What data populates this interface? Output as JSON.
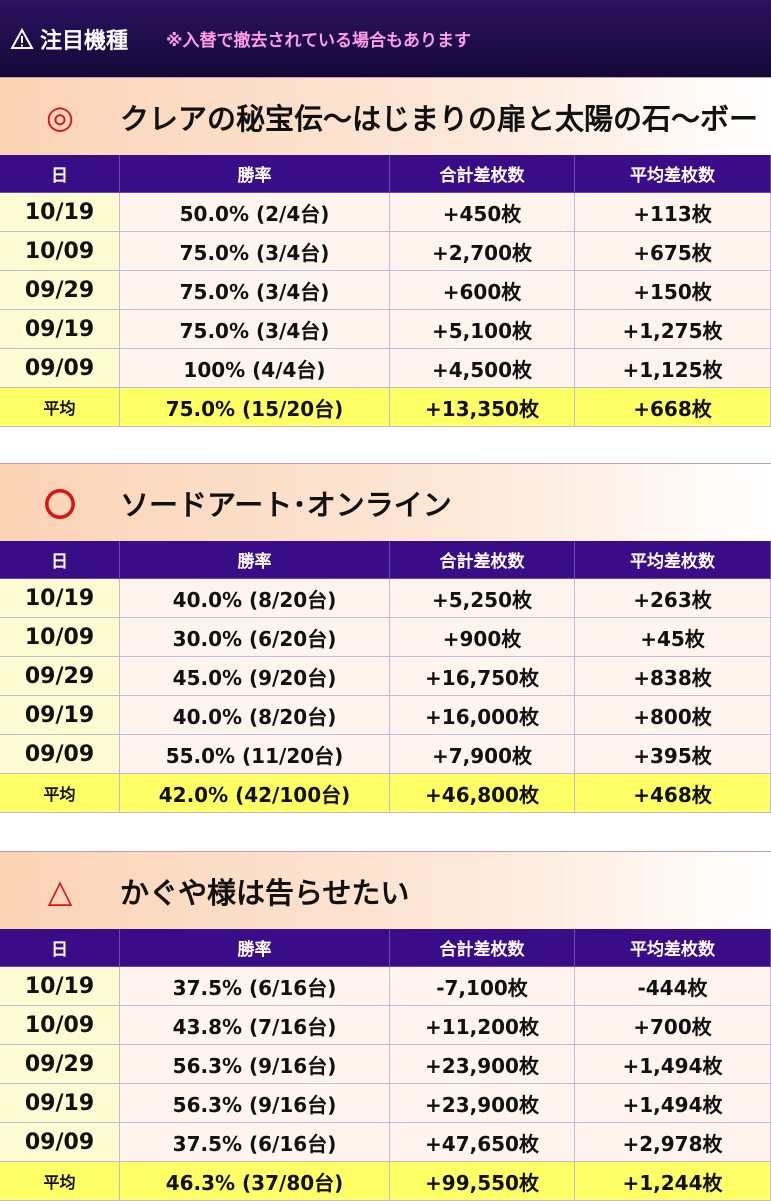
{
  "header": {
    "title": "注目機種",
    "notice": "※入替で撤去されている場合もあります"
  },
  "sections": [
    {
      "mark": "◎",
      "title": "クレアの秘宝伝～はじまりの扉と太陽の石～ボー",
      "columns": [
        "日",
        "勝率",
        "合計差枚数",
        "平均差枚数"
      ],
      "rows": [
        [
          "10/19",
          "50.0% (2/4台)",
          "+450枚",
          "+113枚"
        ],
        [
          "10/09",
          "75.0% (3/4台)",
          "+2,700枚",
          "+675枚"
        ],
        [
          "09/29",
          "75.0% (3/4台)",
          "+600枚",
          "+150枚"
        ],
        [
          "09/19",
          "75.0% (3/4台)",
          "+5,100枚",
          "+1,275枚"
        ],
        [
          "09/09",
          "100% (4/4台)",
          "+4,500枚",
          "+1,125枚"
        ]
      ],
      "average": [
        "平均",
        "75.0% (15/20台)",
        "+13,350枚",
        "+668枚"
      ]
    },
    {
      "mark": "〇",
      "title": "ソードアート･オンライン",
      "columns": [
        "日",
        "勝率",
        "合計差枚数",
        "平均差枚数"
      ],
      "rows": [
        [
          "10/19",
          "40.0% (8/20台)",
          "+5,250枚",
          "+263枚"
        ],
        [
          "10/09",
          "30.0% (6/20台)",
          "+900枚",
          "+45枚"
        ],
        [
          "09/29",
          "45.0% (9/20台)",
          "+16,750枚",
          "+838枚"
        ],
        [
          "09/19",
          "40.0% (8/20台)",
          "+16,000枚",
          "+800枚"
        ],
        [
          "09/09",
          "55.0% (11/20台)",
          "+7,900枚",
          "+395枚"
        ]
      ],
      "average": [
        "平均",
        "42.0% (42/100台)",
        "+46,800枚",
        "+468枚"
      ]
    },
    {
      "mark": "△",
      "title": "かぐや様は告らせたい",
      "columns": [
        "日",
        "勝率",
        "合計差枚数",
        "平均差枚数"
      ],
      "rows": [
        [
          "10/19",
          "37.5% (6/16台)",
          "-7,100枚",
          "-444枚"
        ],
        [
          "10/09",
          "43.8% (7/16台)",
          "+11,200枚",
          "+700枚"
        ],
        [
          "09/29",
          "56.3% (9/16台)",
          "+23,900枚",
          "+1,494枚"
        ],
        [
          "09/19",
          "56.3% (9/16台)",
          "+23,900枚",
          "+1,494枚"
        ],
        [
          "09/09",
          "37.5% (6/16台)",
          "+47,650枚",
          "+2,978枚"
        ]
      ],
      "average": [
        "平均",
        "46.3% (37/80台)",
        "+99,550枚",
        "+1,244枚"
      ]
    }
  ]
}
